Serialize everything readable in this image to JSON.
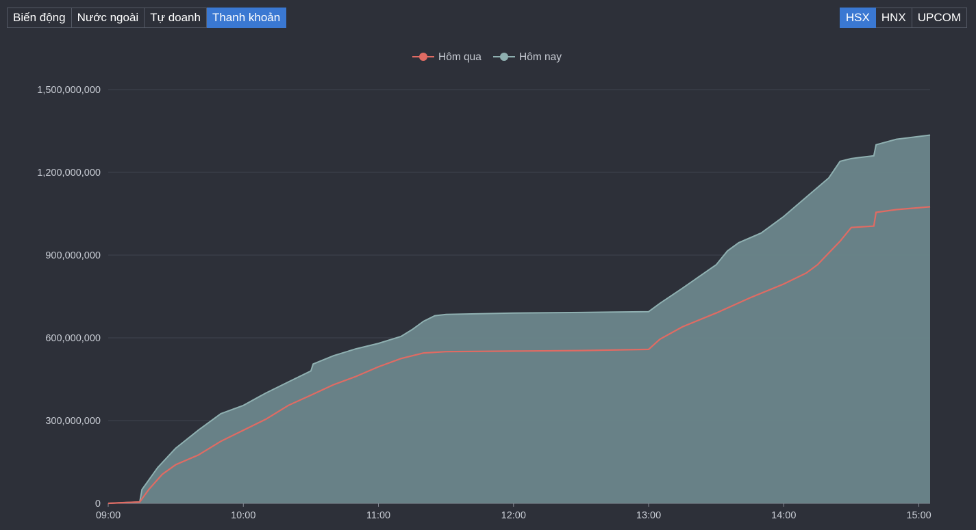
{
  "tabs_left": [
    {
      "label": "Biến động",
      "active": false
    },
    {
      "label": "Nước ngoài",
      "active": false
    },
    {
      "label": "Tự doanh",
      "active": false
    },
    {
      "label": "Thanh khoản",
      "active": true
    }
  ],
  "tabs_right": [
    {
      "label": "HSX",
      "active": true
    },
    {
      "label": "HNX",
      "active": false
    },
    {
      "label": "UPCOM",
      "active": false
    }
  ],
  "colors": {
    "background": "#2d3039",
    "accent": "#3a78d2",
    "yesterday": "#e06b63",
    "today": "#8fb0b1",
    "area": "#6a8489",
    "grid": "#3e434f",
    "axis_text": "#c8ccd4"
  },
  "chart_data": {
    "type": "area",
    "title": "",
    "xlabel": "",
    "ylabel": "",
    "legend": {
      "position": "top-center"
    },
    "grid": true,
    "xlim": [
      "09:00",
      "15:05"
    ],
    "ylim": [
      0,
      1500000000
    ],
    "x_ticks": [
      "09:00",
      "10:00",
      "11:00",
      "12:00",
      "13:00",
      "14:00",
      "15:00"
    ],
    "y_ticks": [
      "0",
      "300,000,000",
      "600,000,000",
      "900,000,000",
      "1,200,000,000",
      "1,500,000,000"
    ],
    "y_tick_values": [
      0,
      300000000,
      600000000,
      900000000,
      1200000000,
      1500000000
    ],
    "series": [
      {
        "name": "Hôm qua",
        "x": [
          "09:00",
          "09:14",
          "09:18",
          "09:24",
          "09:30",
          "09:40",
          "09:50",
          "10:00",
          "10:10",
          "10:20",
          "10:30",
          "10:40",
          "10:50",
          "11:00",
          "11:10",
          "11:20",
          "11:30",
          "12:00",
          "12:30",
          "13:00",
          "13:05",
          "13:15",
          "13:30",
          "13:45",
          "14:00",
          "14:10",
          "14:15",
          "14:25",
          "14:30",
          "14:40",
          "14:41",
          "14:50",
          "15:05"
        ],
        "values": [
          0,
          5000000,
          50000000,
          105000000,
          140000000,
          175000000,
          225000000,
          265000000,
          305000000,
          355000000,
          392000000,
          430000000,
          460000000,
          495000000,
          525000000,
          545000000,
          550000000,
          552000000,
          554000000,
          558000000,
          595000000,
          640000000,
          690000000,
          745000000,
          795000000,
          835000000,
          865000000,
          950000000,
          1000000000,
          1005000000,
          1055000000,
          1065000000,
          1075000000
        ]
      },
      {
        "name": "Hôm nay",
        "x": [
          "09:00",
          "09:14",
          "09:15",
          "09:22",
          "09:30",
          "09:40",
          "09:50",
          "10:00",
          "10:10",
          "10:20",
          "10:30",
          "10:31",
          "10:40",
          "10:50",
          "11:00",
          "11:10",
          "11:15",
          "11:20",
          "11:25",
          "11:30",
          "12:00",
          "12:30",
          "13:00",
          "13:05",
          "13:15",
          "13:30",
          "13:35",
          "13:40",
          "13:50",
          "14:00",
          "14:10",
          "14:20",
          "14:25",
          "14:30",
          "14:35",
          "14:40",
          "14:41",
          "14:50",
          "15:05"
        ],
        "values": [
          0,
          5000000,
          50000000,
          130000000,
          200000000,
          265000000,
          325000000,
          355000000,
          400000000,
          440000000,
          480000000,
          505000000,
          535000000,
          560000000,
          580000000,
          605000000,
          630000000,
          660000000,
          680000000,
          685000000,
          690000000,
          692000000,
          695000000,
          725000000,
          780000000,
          865000000,
          915000000,
          945000000,
          980000000,
          1040000000,
          1110000000,
          1180000000,
          1240000000,
          1250000000,
          1255000000,
          1260000000,
          1300000000,
          1320000000,
          1335000000
        ]
      }
    ]
  }
}
